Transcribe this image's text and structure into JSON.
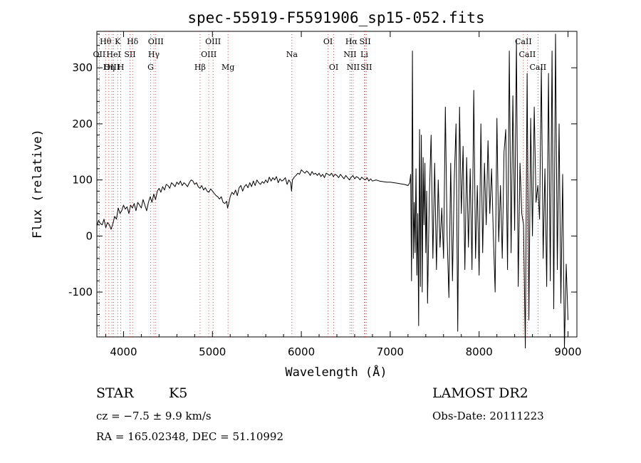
{
  "chart_data": {
    "type": "line",
    "title": "spec-55919-F5591906_sp15-052.fits",
    "xlabel": "Wavelength (Å)",
    "ylabel": "Flux (relative)",
    "xlim": [
      3700,
      9100
    ],
    "ylim": [
      -180,
      365
    ],
    "xticks": [
      4000,
      5000,
      6000,
      7000,
      8000,
      9000
    ],
    "yticks": [
      -100,
      0,
      100,
      200,
      300
    ],
    "grid": false,
    "line_color": "#000000",
    "marker_line_color": "#cc3333",
    "series": [
      {
        "values_x": [
          3700,
          3720,
          3740,
          3760,
          3780,
          3800,
          3820,
          3840,
          3860,
          3880,
          3900,
          3920,
          3940,
          3960,
          3980,
          4000,
          4020,
          4040,
          4060,
          4080,
          4100,
          4120,
          4140,
          4160,
          4180,
          4200,
          4220,
          4240,
          4260,
          4280,
          4300,
          4320,
          4340,
          4360,
          4380,
          4400,
          4420,
          4440,
          4460,
          4480,
          4500,
          4520,
          4540,
          4560,
          4580,
          4600,
          4620,
          4640,
          4660,
          4680,
          4700,
          4720,
          4740,
          4760,
          4780,
          4800,
          4820,
          4840,
          4860,
          4880,
          4900,
          4920,
          4940,
          4960,
          4980,
          5000,
          5020,
          5040,
          5060,
          5080,
          5100,
          5120,
          5140,
          5160,
          5170,
          5180,
          5200,
          5220,
          5240,
          5260,
          5280,
          5300,
          5320,
          5340,
          5360,
          5380,
          5400,
          5420,
          5440,
          5460,
          5480,
          5500,
          5520,
          5540,
          5560,
          5580,
          5600,
          5620,
          5640,
          5660,
          5680,
          5700,
          5720,
          5740,
          5760,
          5780,
          5800,
          5820,
          5840,
          5860,
          5880,
          5890,
          5900,
          5920,
          5940,
          5960,
          5980,
          6000,
          6020,
          6040,
          6060,
          6080,
          6100,
          6120,
          6140,
          6160,
          6180,
          6200,
          6220,
          6240,
          6260,
          6280,
          6300,
          6320,
          6340,
          6360,
          6380,
          6400,
          6420,
          6440,
          6460,
          6480,
          6500,
          6520,
          6540,
          6563,
          6580,
          6600,
          6620,
          6640,
          6660,
          6680,
          6700,
          6720,
          6740,
          6760,
          6780,
          6800,
          6840,
          6880,
          6920,
          6960,
          7000,
          7040,
          7080,
          7120,
          7160,
          7200,
          7220,
          7230,
          7240,
          7250,
          7260,
          7270,
          7280,
          7290,
          7300,
          7310,
          7320,
          7330,
          7340,
          7350,
          7360,
          7370,
          7380,
          7390,
          7400,
          7410,
          7420,
          7440,
          7460,
          7480,
          7500,
          7520,
          7540,
          7560,
          7580,
          7600,
          7620,
          7640,
          7660,
          7680,
          7700,
          7720,
          7740,
          7760,
          7780,
          7800,
          7820,
          7840,
          7860,
          7880,
          7900,
          7920,
          7940,
          7960,
          7980,
          8000,
          8020,
          8040,
          8060,
          8080,
          8100,
          8120,
          8140,
          8160,
          8180,
          8200,
          8220,
          8240,
          8260,
          8280,
          8300,
          8320,
          8340,
          8360,
          8380,
          8400,
          8420,
          8440,
          8460,
          8480,
          8500,
          8520,
          8540,
          8560,
          8580,
          8600,
          8620,
          8640,
          8660,
          8680,
          8700,
          8720,
          8740,
          8760,
          8780,
          8800,
          8820,
          8840,
          8860,
          8880,
          8900,
          8920,
          8940,
          8960,
          8980,
          9000
        ],
        "values_y": [
          18,
          28,
          22,
          20,
          30,
          15,
          24,
          20,
          12,
          22,
          35,
          30,
          50,
          40,
          45,
          55,
          48,
          52,
          40,
          55,
          50,
          58,
          45,
          60,
          55,
          50,
          65,
          55,
          45,
          60,
          70,
          60,
          75,
          65,
          80,
          85,
          78,
          88,
          82,
          92,
          90,
          85,
          95,
          92,
          88,
          96,
          92,
          98,
          90,
          95,
          92,
          88,
          95,
          100,
          98,
          92,
          95,
          88,
          85,
          90,
          82,
          86,
          80,
          78,
          84,
          80,
          76,
          72,
          70,
          66,
          70,
          60,
          58,
          62,
          50,
          55,
          70,
          78,
          74,
          82,
          72,
          86,
          90,
          80,
          88,
          92,
          86,
          95,
          88,
          98,
          90,
          100,
          95,
          92,
          97,
          94,
          100,
          95,
          105,
          98,
          104,
          100,
          106,
          95,
          102,
          98,
          100,
          104,
          92,
          100,
          95,
          80,
          100,
          105,
          108,
          112,
          110,
          118,
          115,
          112,
          116,
          113,
          108,
          115,
          110,
          112,
          108,
          112,
          106,
          110,
          104,
          112,
          110,
          108,
          112,
          106,
          110,
          108,
          104,
          110,
          106,
          102,
          108,
          104,
          100,
          105,
          108,
          102,
          106,
          104,
          100,
          105,
          102,
          100,
          104,
          98,
          102,
          98,
          100,
          98,
          97,
          96,
          96,
          95,
          94,
          93,
          92,
          90,
          95,
          110,
          -80,
          330,
          -40,
          60,
          -30,
          120,
          -70,
          40,
          -160,
          190,
          -90,
          180,
          -100,
          140,
          20,
          130,
          -30,
          80,
          -120,
          70,
          180,
          -40,
          130,
          -60,
          100,
          -20,
          50,
          -40,
          230,
          0,
          -110,
          130,
          -80,
          100,
          200,
          -170,
          230,
          40,
          160,
          -60,
          140,
          -20,
          120,
          -60,
          260,
          -40,
          90,
          -70,
          200,
          -30,
          130,
          20,
          170,
          40,
          120,
          0,
          -100,
          210,
          -10,
          90,
          -40,
          150,
          190,
          -60,
          330,
          -30,
          250,
          10,
          350,
          -90,
          130,
          40,
          20,
          -200,
          290,
          -150,
          210,
          0,
          230,
          60,
          90,
          30,
          300,
          -40,
          120,
          -90,
          290,
          -80,
          330,
          -130,
          360,
          -60,
          200,
          -120,
          110,
          -200,
          -50,
          -150
        ]
      }
    ],
    "lines": [
      {
        "label": "Hθ",
        "x": 3798,
        "row": 1
      },
      {
        "label": "OII",
        "x": 3727,
        "row": 2
      },
      {
        "label": "OIII",
        "x": 3869,
        "row": 3
      },
      {
        "label": "Hη",
        "x": 3835,
        "row": 3
      },
      {
        "label": "K",
        "x": 3934,
        "row": 1
      },
      {
        "label": "HeI",
        "x": 3889,
        "row": 2
      },
      {
        "label": "SII",
        "x": 4072,
        "row": 2
      },
      {
        "label": "H",
        "x": 3969,
        "row": 3
      },
      {
        "label": "Hδ",
        "x": 4102,
        "row": 1
      },
      {
        "label": "OIII",
        "x": 4363,
        "row": 1
      },
      {
        "label": "Hγ",
        "x": 4341,
        "row": 2
      },
      {
        "label": "G",
        "x": 4305,
        "row": 3
      },
      {
        "label": "Hβ",
        "x": 4861,
        "row": 3
      },
      {
        "label": "OIII",
        "x": 5007,
        "row": 1
      },
      {
        "label": "OIII",
        "x": 4959,
        "row": 2
      },
      {
        "label": "Mg",
        "x": 5175,
        "row": 3
      },
      {
        "label": "Na",
        "x": 5894,
        "row": 2
      },
      {
        "label": "OI",
        "x": 6300,
        "row": 1
      },
      {
        "label": "OI",
        "x": 6364,
        "row": 3
      },
      {
        "label": "Hα",
        "x": 6563,
        "row": 1
      },
      {
        "label": "SII",
        "x": 6717,
        "row": 1
      },
      {
        "label": "NII",
        "x": 6548,
        "row": 2
      },
      {
        "label": "Li",
        "x": 6708,
        "row": 2
      },
      {
        "label": "NII",
        "x": 6584,
        "row": 3
      },
      {
        "label": "SII",
        "x": 6731,
        "row": 3
      },
      {
        "label": "CaII",
        "x": 8498,
        "row": 1
      },
      {
        "label": "CaII",
        "x": 8542,
        "row": 2
      },
      {
        "label": "CaII",
        "x": 8662,
        "row": 3
      }
    ]
  },
  "info": {
    "object_class": "STAR",
    "subclass": "K5",
    "survey": "LAMOST DR2",
    "cz": "cz = −7.5 ± 9.9 km/s",
    "obs_date": "Obs-Date: 20111223",
    "ra_dec": "RA = 165.02348, DEC =  51.10992"
  }
}
